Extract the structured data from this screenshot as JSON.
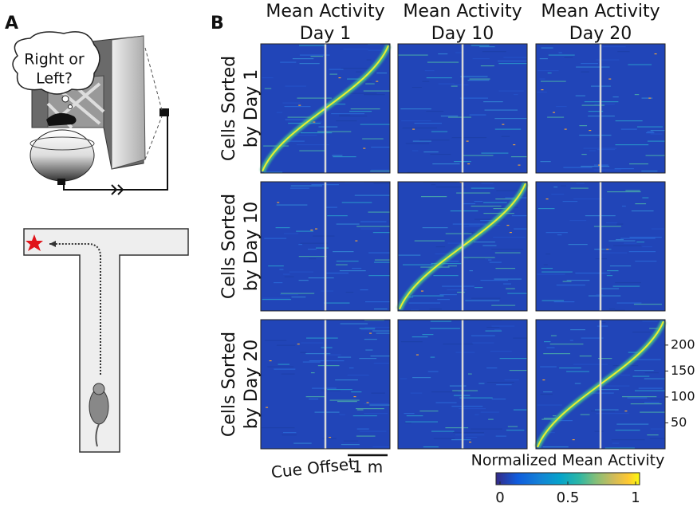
{
  "panel_labels": [
    "A",
    "B"
  ],
  "thought_bubble": [
    "Right or",
    "Left?"
  ],
  "columns": [
    {
      "title": [
        "Mean Activity",
        "Day 1"
      ]
    },
    {
      "title": [
        "Mean Activity",
        "Day 10"
      ]
    },
    {
      "title": [
        "Mean Activity",
        "Day 20"
      ]
    }
  ],
  "rows": [
    {
      "label": [
        "Cells Sorted",
        "by Day 1"
      ]
    },
    {
      "label": [
        "Cells Sorted",
        "by Day 10"
      ]
    },
    {
      "label": [
        "Cells Sorted",
        "by Day 20"
      ]
    }
  ],
  "cell_axis": {
    "range": [
      0,
      249
    ],
    "ticks": [
      50,
      100,
      150,
      200
    ]
  },
  "cue_label": "Cue Offset",
  "scale_bar": "1 m",
  "colorbar": {
    "label": "Normalized Mean Activity",
    "range": [
      0,
      1
    ],
    "ticks": [
      0,
      0.5,
      1
    ]
  }
}
